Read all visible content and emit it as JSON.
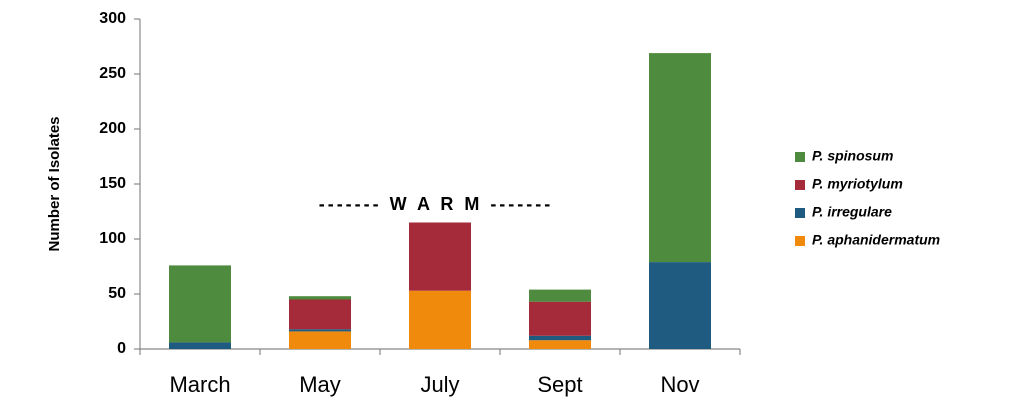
{
  "chart_data": {
    "type": "stacked_bar",
    "y_label": "Number of Isolates",
    "annotation": "------- W A R M -------",
    "categories": [
      "March",
      "May",
      "July",
      "Sept",
      "Nov"
    ],
    "series": [
      {
        "name": "P. aphanidermatum",
        "color": "#f08a0c",
        "values": [
          0,
          16,
          53,
          8,
          0
        ]
      },
      {
        "name": "P. irregulare",
        "color": "#1f5a80",
        "values": [
          6,
          2,
          0,
          4,
          79
        ]
      },
      {
        "name": "P. myriotylum",
        "color": "#a52a3a",
        "values": [
          0,
          27,
          62,
          31,
          0
        ]
      },
      {
        "name": "P. spinosum",
        "color": "#4e8b3e",
        "values": [
          70,
          3,
          0,
          11,
          190
        ]
      }
    ],
    "ylim": [
      0,
      300
    ],
    "yticks": [
      0,
      50,
      100,
      150,
      200,
      250,
      300
    ],
    "grid": false,
    "legend": "right"
  }
}
